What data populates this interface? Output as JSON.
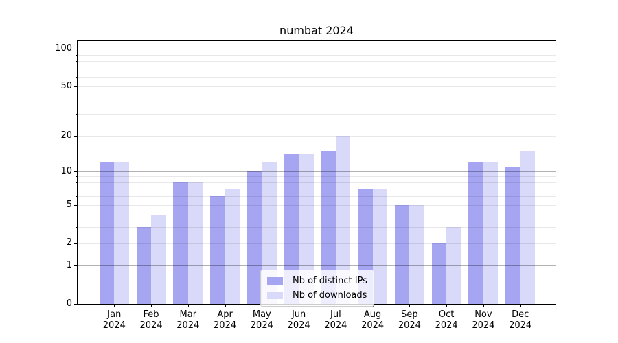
{
  "chart_data": {
    "type": "bar",
    "title": "numbat 2024",
    "categories": [
      "Jan",
      "Feb",
      "Mar",
      "Apr",
      "May",
      "Jun",
      "Jul",
      "Aug",
      "Sep",
      "Oct",
      "Nov",
      "Dec"
    ],
    "year_label": "2024",
    "series": [
      {
        "name": "Nb of distinct IPs",
        "color": "#a5a5f2",
        "values": [
          12,
          3,
          8,
          6,
          10,
          14,
          15,
          7,
          5,
          2,
          12,
          11
        ]
      },
      {
        "name": "Nb of downloads",
        "color": "#d9d9f9",
        "values": [
          12,
          4,
          8,
          7,
          12,
          14,
          20,
          7,
          5,
          3,
          12,
          15
        ]
      }
    ],
    "yscale": "log1p",
    "ylim": {
      "min": 0,
      "max": 115
    },
    "yticks": [
      0,
      1,
      2,
      5,
      10,
      20,
      50,
      100
    ],
    "grid": {
      "on": true,
      "major_values": [
        1,
        10,
        100
      ],
      "minor_values": [
        2,
        3,
        4,
        5,
        6,
        7,
        8,
        9,
        20,
        30,
        40,
        50,
        60,
        70,
        80,
        90
      ],
      "major_color": "rgba(0,0,0,0.30)",
      "minor_color": "rgba(0,0,0,0.09)"
    },
    "legend_position": "lower center",
    "axis_color": "#000000",
    "background_color": "#ffffff"
  }
}
